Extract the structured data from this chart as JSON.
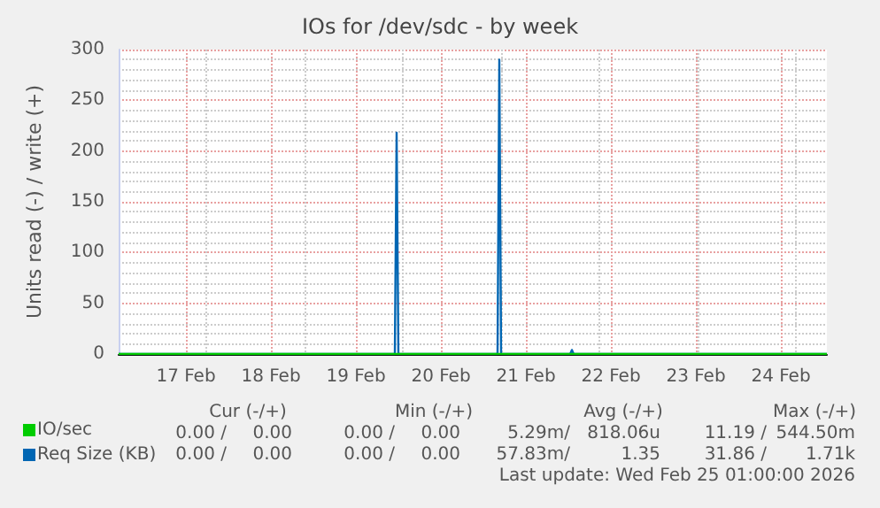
{
  "chart_data": {
    "type": "line",
    "title": "IOs for /dev/sdc - by week",
    "ylabel": "Units read (-) / write (+)",
    "xlim": [
      "2026-02-16T17:00",
      "2026-02-25T01:00"
    ],
    "xticks": [
      {
        "value": "2026-02-17T12:00",
        "label": "17 Feb"
      },
      {
        "value": "2026-02-18T12:00",
        "label": "18 Feb"
      },
      {
        "value": "2026-02-19T12:00",
        "label": "19 Feb"
      },
      {
        "value": "2026-02-20T12:00",
        "label": "20 Feb"
      },
      {
        "value": "2026-02-21T12:00",
        "label": "21 Feb"
      },
      {
        "value": "2026-02-22T12:00",
        "label": "22 Feb"
      },
      {
        "value": "2026-02-23T12:00",
        "label": "23 Feb"
      },
      {
        "value": "2026-02-24T12:00",
        "label": "24 Feb"
      }
    ],
    "ylim": [
      0,
      300
    ],
    "yticks": [
      0,
      50,
      100,
      150,
      200,
      250,
      300
    ],
    "grid": true,
    "legend": "bottom left",
    "marker": "none",
    "line_style": "solid",
    "series": [
      {
        "name": "IO/sec",
        "color": "#00cc00",
        "x": [
          "2026-02-16T17:00",
          "2026-02-25T01:00"
        ],
        "values": [
          0,
          0
        ]
      },
      {
        "name": "Req Size (KB)",
        "color": "#0066b3",
        "x": [
          "2026-02-16T17:00",
          "2026-02-19T23:00",
          "2026-02-19T23:30",
          "2026-02-20T00:00",
          "2026-02-21T04:00",
          "2026-02-21T04:30",
          "2026-02-21T05:00",
          "2026-02-22T00:30",
          "2026-02-22T01:00",
          "2026-02-22T01:30",
          "2026-02-25T01:00"
        ],
        "values": [
          0,
          0,
          218,
          0,
          0,
          290,
          0,
          0,
          4,
          0,
          0
        ]
      }
    ],
    "annotations": [
      "Cur (-/+)",
      "Min (-/+)",
      "Avg (-/+)",
      "Max (-/+)",
      "0.00 /",
      "0.00",
      "0.00 /",
      "0.00",
      "5.29m/",
      "818.06u",
      "11.19 /",
      "544.50m",
      "0.00 /",
      "0.00",
      "0.00 /",
      "0.00",
      "57.83m/",
      "1.35",
      "31.86 /",
      "1.71k",
      "Last update: Wed Feb 25 01:00:00 2026"
    ]
  }
}
